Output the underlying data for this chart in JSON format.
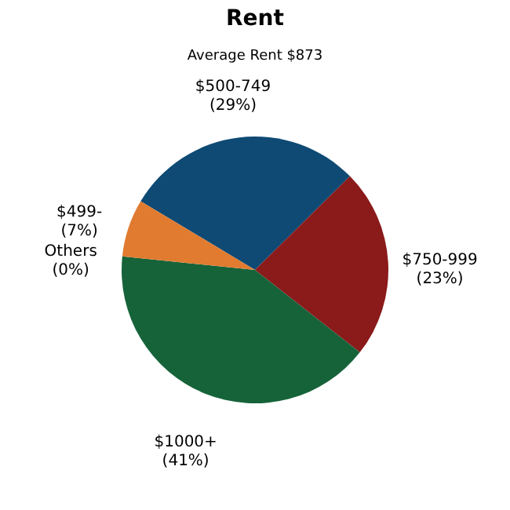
{
  "chart_data": {
    "type": "pie",
    "title": "Rent",
    "subtitle": "Average Rent  $873",
    "categories": [
      "$500-749",
      "$750-999",
      "$1000+",
      "Others",
      "$499-"
    ],
    "values": [
      29,
      23,
      41,
      0,
      7
    ],
    "value_labels": [
      "(29%)",
      "(23%)",
      "(41%)",
      "(0%)",
      "(7%)"
    ],
    "colors": [
      "#0e4a74",
      "#8b1a1a",
      "#16633a",
      "#6b8e23",
      "#e07b30"
    ]
  }
}
